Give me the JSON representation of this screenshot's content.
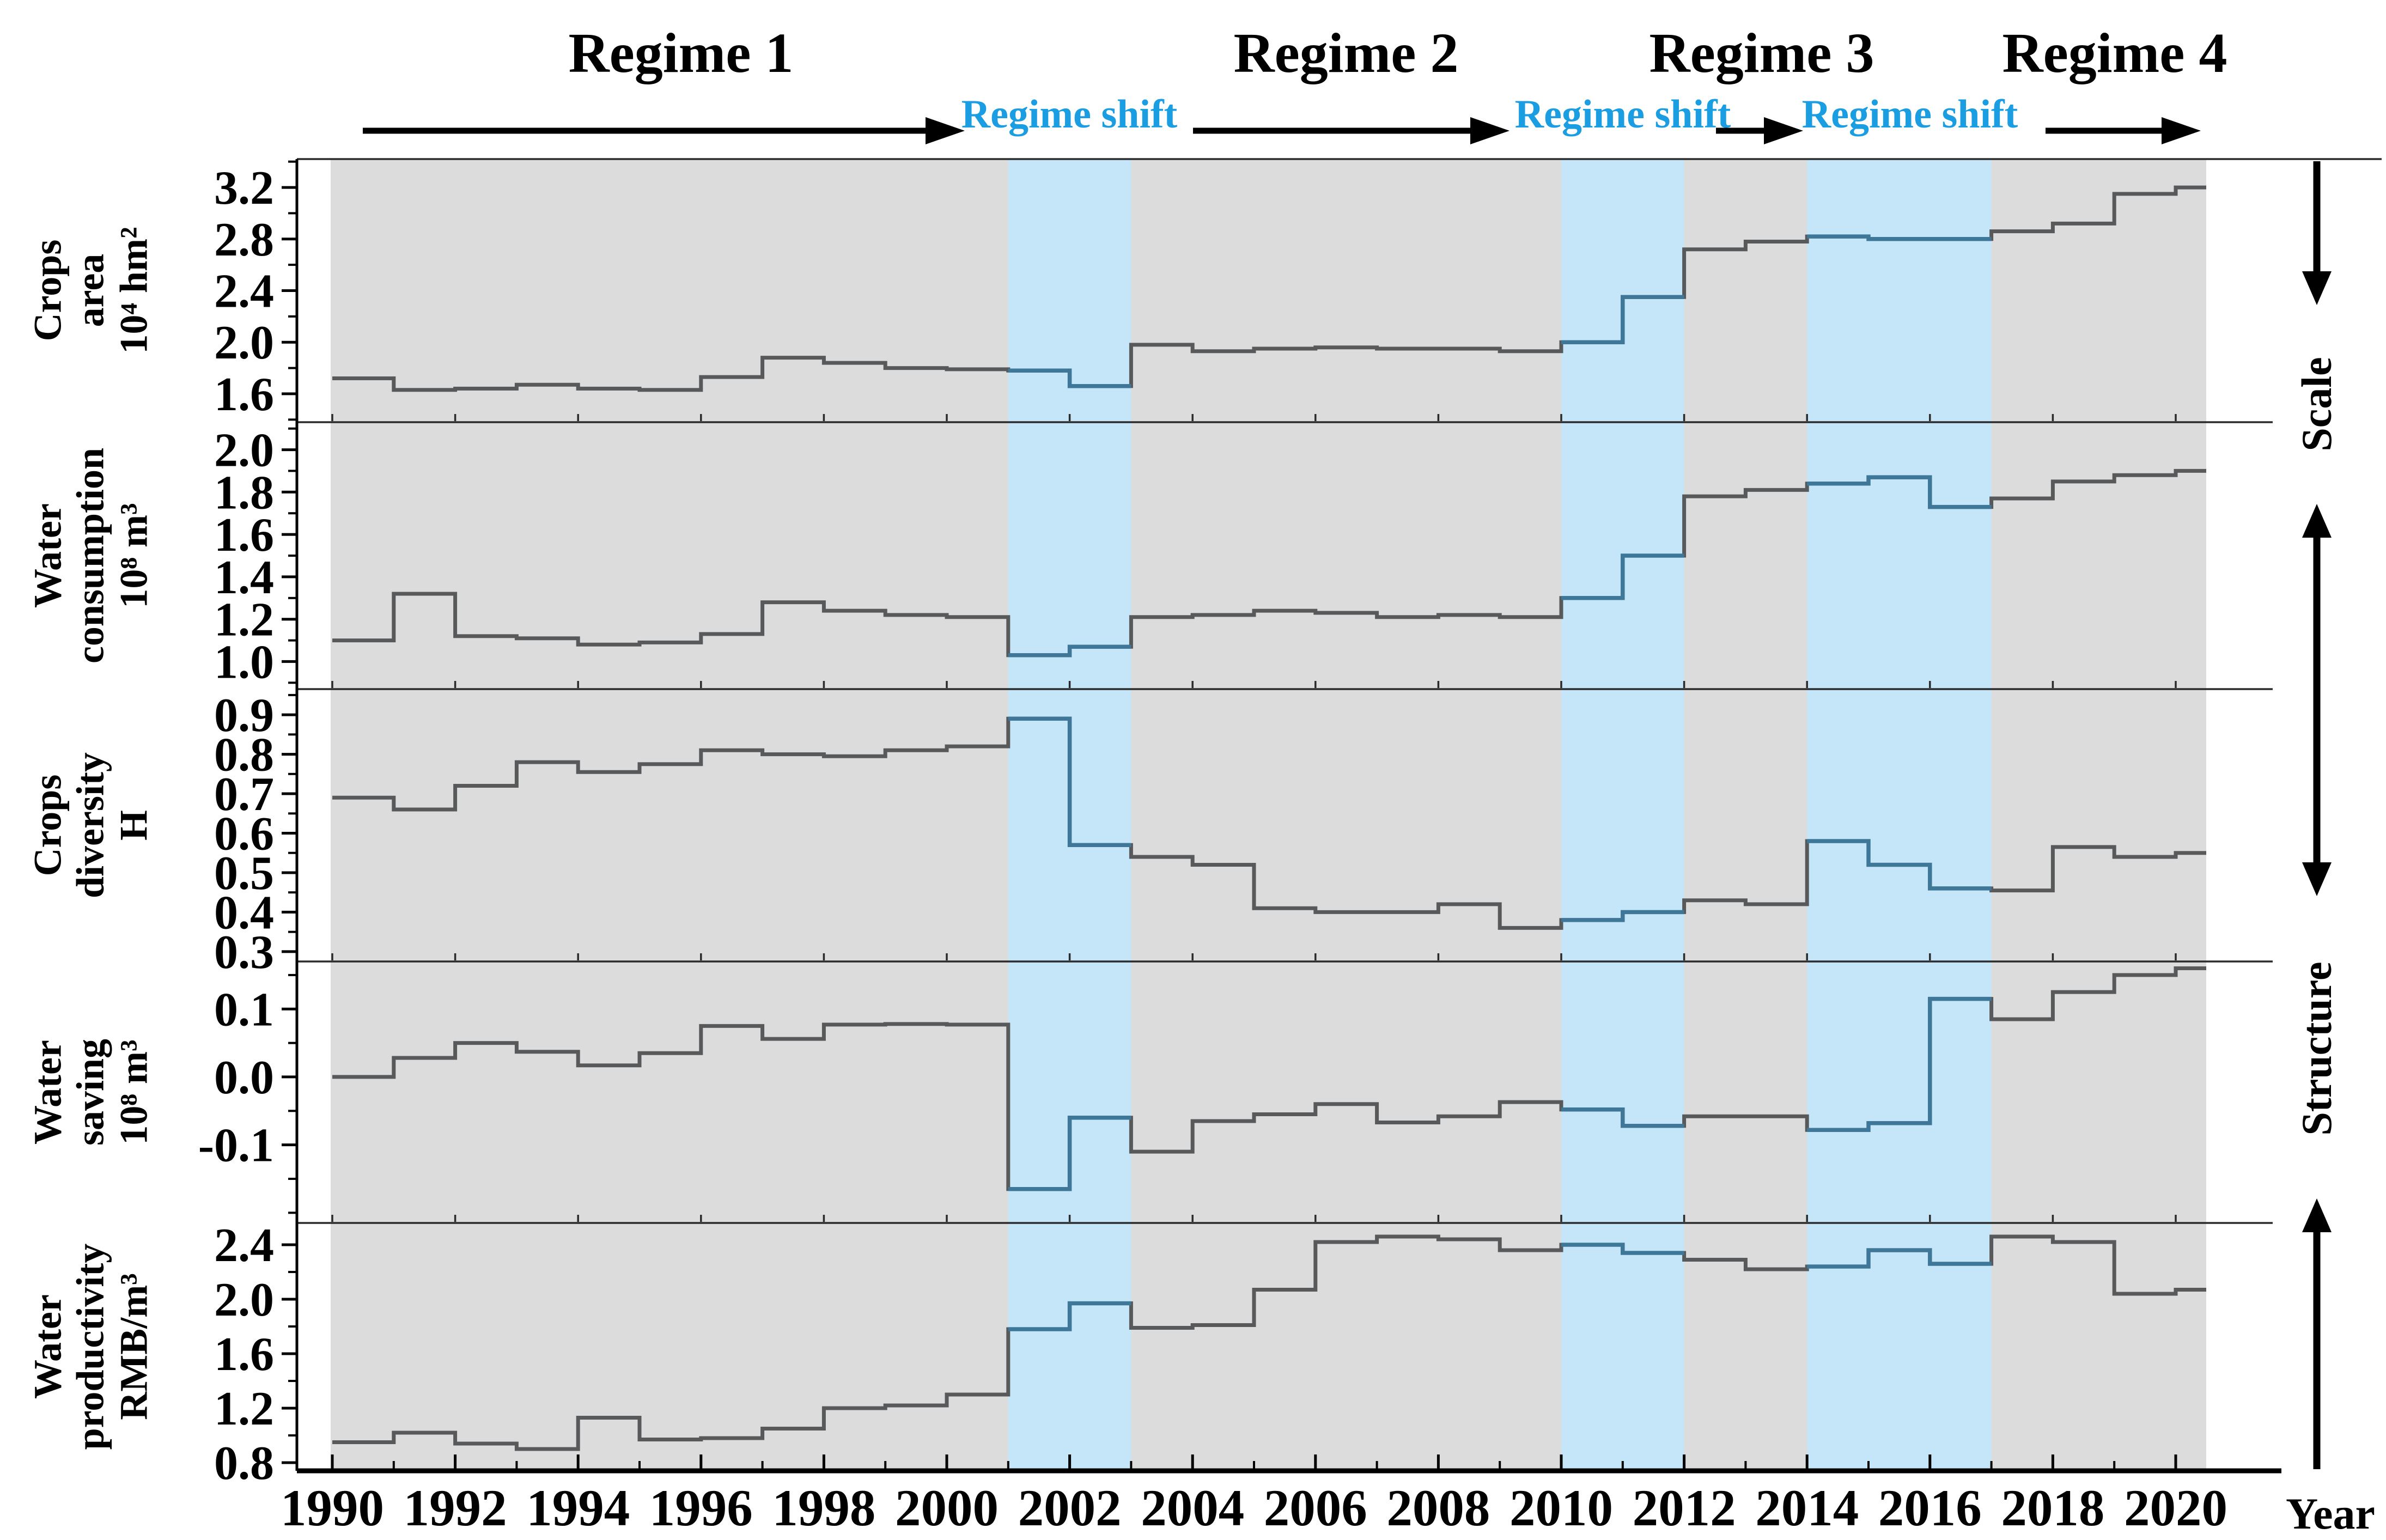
{
  "figure": {
    "regimes": [
      {
        "label": "Regime 1"
      },
      {
        "label": "Regime 2"
      },
      {
        "label": "Regime 3"
      },
      {
        "label": "Regime 4"
      }
    ],
    "regime_shift_label": "Regime shift",
    "right_axis_labels": {
      "top": "Scale",
      "bottom": "Structure"
    },
    "xlabel": "Year"
  },
  "chart_data": {
    "type": "line",
    "subtype": "step-stairs",
    "xlabel": "Year",
    "x_years": [
      1990,
      1991,
      1992,
      1993,
      1994,
      1995,
      1996,
      1997,
      1998,
      1999,
      2000,
      2001,
      2002,
      2003,
      2004,
      2005,
      2006,
      2007,
      2008,
      2009,
      2010,
      2011,
      2012,
      2013,
      2014,
      2015,
      2016,
      2017,
      2018,
      2019,
      2020
    ],
    "x_tick_labels": [
      "1990",
      "1992",
      "1994",
      "1996",
      "1998",
      "2000",
      "2002",
      "2004",
      "2006",
      "2008",
      "2010",
      "2012",
      "2014",
      "2016",
      "2018",
      "2020"
    ],
    "regime_bands": [
      [
        2001,
        2003
      ],
      [
        2010,
        2012
      ],
      [
        2014,
        2017
      ]
    ],
    "legend": "none",
    "grid": "off",
    "panels": [
      {
        "name_lines": [
          "Crops",
          "area"
        ],
        "unit": "10⁴ hm²",
        "ylim": [
          1.38,
          3.42
        ],
        "yticks": [
          1.6,
          2.0,
          2.4,
          2.8,
          3.2
        ],
        "values": [
          1.72,
          1.63,
          1.64,
          1.67,
          1.64,
          1.63,
          1.73,
          1.88,
          1.84,
          1.8,
          1.79,
          1.78,
          1.66,
          1.98,
          1.93,
          1.95,
          1.96,
          1.95,
          1.95,
          1.93,
          2.0,
          2.35,
          2.72,
          2.78,
          2.82,
          2.8,
          2.8,
          2.86,
          2.92,
          3.15,
          3.2
        ]
      },
      {
        "name_lines": [
          "Water",
          "consumption"
        ],
        "unit": "10⁸ m³",
        "ylim": [
          0.87,
          2.13
        ],
        "yticks": [
          1.0,
          1.2,
          1.4,
          1.6,
          1.8,
          2.0
        ],
        "values": [
          1.1,
          1.32,
          1.12,
          1.11,
          1.08,
          1.09,
          1.13,
          1.28,
          1.24,
          1.22,
          1.21,
          1.03,
          1.07,
          1.21,
          1.22,
          1.24,
          1.23,
          1.21,
          1.22,
          1.21,
          1.3,
          1.5,
          1.78,
          1.81,
          1.84,
          1.87,
          1.73,
          1.77,
          1.85,
          1.88,
          1.9
        ]
      },
      {
        "name_lines": [
          "Crops",
          "diversity"
        ],
        "unit": "H",
        "ylim": [
          0.275,
          0.965
        ],
        "yticks": [
          0.3,
          0.4,
          0.5,
          0.6,
          0.7,
          0.8,
          0.9
        ],
        "values": [
          0.69,
          0.66,
          0.72,
          0.78,
          0.755,
          0.775,
          0.81,
          0.8,
          0.795,
          0.81,
          0.82,
          0.89,
          0.57,
          0.54,
          0.52,
          0.41,
          0.4,
          0.4,
          0.42,
          0.36,
          0.38,
          0.4,
          0.43,
          0.42,
          0.58,
          0.52,
          0.46,
          0.455,
          0.565,
          0.54,
          0.55
        ]
      },
      {
        "name_lines": [
          "Water",
          "saving"
        ],
        "unit": "10⁸ m³",
        "ylim": [
          -0.215,
          0.17
        ],
        "yticks": [
          -0.1,
          0.0,
          0.1
        ],
        "values": [
          0.0,
          0.028,
          0.05,
          0.037,
          0.017,
          0.035,
          0.075,
          0.056,
          0.077,
          0.078,
          0.077,
          -0.165,
          -0.06,
          -0.11,
          -0.065,
          -0.055,
          -0.04,
          -0.067,
          -0.058,
          -0.037,
          -0.048,
          -0.072,
          -0.058,
          -0.058,
          -0.078,
          -0.068,
          0.115,
          0.085,
          0.125,
          0.15,
          0.16
        ]
      },
      {
        "name_lines": [
          "Water",
          "productivity"
        ],
        "unit": "RMB/m³",
        "ylim": [
          0.74,
          2.56
        ],
        "yticks": [
          0.8,
          1.2,
          1.6,
          2.0,
          2.4
        ],
        "values": [
          0.95,
          1.02,
          0.94,
          0.9,
          1.13,
          0.97,
          0.98,
          1.05,
          1.2,
          1.22,
          1.3,
          1.78,
          1.97,
          1.79,
          1.81,
          2.07,
          2.42,
          2.46,
          2.44,
          2.36,
          2.4,
          2.34,
          2.29,
          2.22,
          2.24,
          2.36,
          2.26,
          2.46,
          2.42,
          2.04,
          2.07
        ]
      }
    ],
    "colors": {
      "plot_bg": "#dcdcdc",
      "band": "#c4e6f8",
      "line": "#58595b",
      "line_in_band": "#3f7799",
      "shift_text": "#1b9de2",
      "axis": "#000000"
    }
  }
}
